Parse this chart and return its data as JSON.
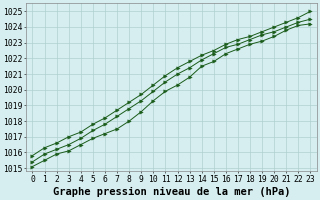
{
  "xlabel": "Graphe pression niveau de la mer (hPa)",
  "xlim": [
    -0.5,
    23.5
  ],
  "ylim": [
    1014.8,
    1025.5
  ],
  "yticks": [
    1015,
    1016,
    1017,
    1018,
    1019,
    1020,
    1021,
    1022,
    1023,
    1024,
    1025
  ],
  "xticks": [
    0,
    1,
    2,
    3,
    4,
    5,
    6,
    7,
    8,
    9,
    10,
    11,
    12,
    13,
    14,
    15,
    16,
    17,
    18,
    19,
    20,
    21,
    22,
    23
  ],
  "bg_color": "#d6eef0",
  "line_color": "#1a5c1a",
  "grid_color": "#b0d0d0",
  "line1": [
    1015.1,
    1015.5,
    1015.9,
    1016.1,
    1016.5,
    1016.9,
    1017.2,
    1017.5,
    1018.0,
    1018.6,
    1019.3,
    1019.9,
    1020.3,
    1020.8,
    1021.5,
    1021.8,
    1022.3,
    1022.6,
    1022.9,
    1023.1,
    1023.4,
    1023.8,
    1024.1,
    1024.2
  ],
  "line2": [
    1015.4,
    1015.9,
    1016.2,
    1016.5,
    1016.9,
    1017.4,
    1017.8,
    1018.3,
    1018.8,
    1019.3,
    1019.9,
    1020.5,
    1021.0,
    1021.4,
    1021.9,
    1022.3,
    1022.7,
    1022.9,
    1023.2,
    1023.5,
    1023.7,
    1024.0,
    1024.3,
    1024.5
  ],
  "line3": [
    1015.8,
    1016.3,
    1016.6,
    1017.0,
    1017.3,
    1017.8,
    1018.2,
    1018.7,
    1019.2,
    1019.7,
    1020.3,
    1020.9,
    1021.4,
    1021.8,
    1022.2,
    1022.5,
    1022.9,
    1023.2,
    1023.4,
    1023.7,
    1024.0,
    1024.3,
    1024.6,
    1025.0
  ],
  "title_fontsize": 7.5,
  "tick_fontsize": 5.8
}
